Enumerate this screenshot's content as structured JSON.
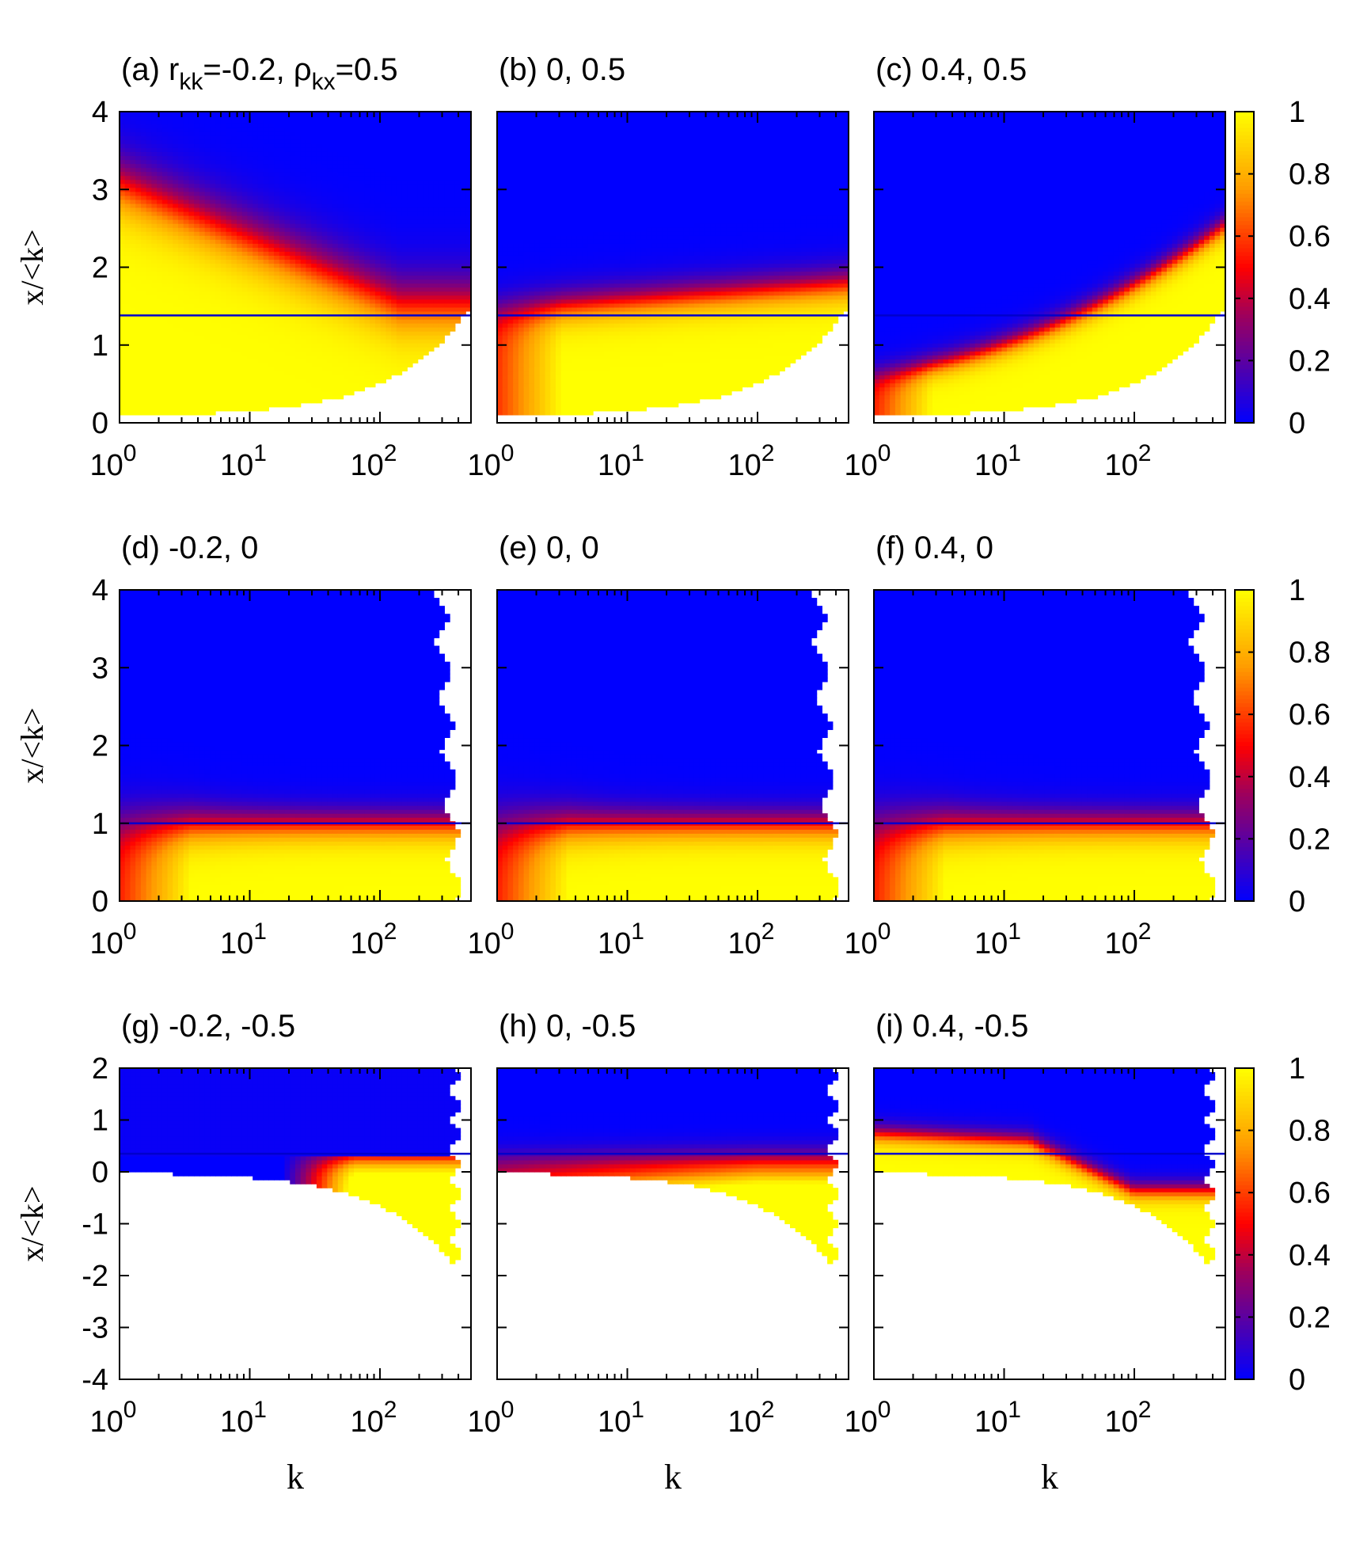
{
  "colormap": {
    "stops": [
      {
        "v": 0.0,
        "color": "#0000ff"
      },
      {
        "v": 0.35,
        "color": "#a0005a"
      },
      {
        "v": 0.5,
        "color": "#ff0000"
      },
      {
        "v": 0.75,
        "color": "#ff9a00"
      },
      {
        "v": 1.0,
        "color": "#ffff00"
      }
    ],
    "tick_labels": [
      "0",
      "0.2",
      "0.4",
      "0.6",
      "0.8",
      "1"
    ]
  },
  "threshold_line_color": "#0000cc",
  "chart_data": [
    {
      "id": "a",
      "type": "heatmap",
      "title_prefix": "(a) ",
      "title_parts": [
        "r",
        "kk",
        "=-0.2, ",
        "ρ",
        "kx",
        "=0.5"
      ],
      "x_scale": "log",
      "xlim": [
        1,
        500
      ],
      "x_ticks": [
        1,
        10,
        100
      ],
      "x_tick_labels": [
        {
          "base": "10",
          "exp": "0"
        },
        {
          "base": "10",
          "exp": "1"
        },
        {
          "base": "10",
          "exp": "2"
        }
      ],
      "ylim": [
        0,
        4
      ],
      "y_ticks": [
        "0",
        "1",
        "2",
        "3",
        "4"
      ],
      "ylabel": "x/<k>",
      "xlabel": "",
      "threshold": 1.38,
      "rkk": -0.2,
      "rho": 0.5
    },
    {
      "id": "b",
      "type": "heatmap",
      "title": "(b) 0, 0.5",
      "x_scale": "log",
      "xlim": [
        1,
        500
      ],
      "x_ticks": [
        1,
        10,
        100
      ],
      "x_tick_labels": [
        {
          "base": "10",
          "exp": "0"
        },
        {
          "base": "10",
          "exp": "1"
        },
        {
          "base": "10",
          "exp": "2"
        }
      ],
      "ylim": [
        0,
        4
      ],
      "y_ticks": [],
      "ylabel": "",
      "xlabel": "",
      "threshold": 1.38,
      "rkk": 0,
      "rho": 0.5
    },
    {
      "id": "c",
      "type": "heatmap",
      "title": "(c) 0.4, 0.5",
      "x_scale": "log",
      "xlim": [
        1,
        500
      ],
      "x_ticks": [
        1,
        10,
        100
      ],
      "x_tick_labels": [
        {
          "base": "10",
          "exp": "0"
        },
        {
          "base": "10",
          "exp": "1"
        },
        {
          "base": "10",
          "exp": "2"
        }
      ],
      "ylim": [
        0,
        4
      ],
      "y_ticks": [],
      "ylabel": "",
      "xlabel": "",
      "threshold": 1.38,
      "rkk": 0.4,
      "rho": 0.5,
      "colorbar": true
    },
    {
      "id": "d",
      "type": "heatmap",
      "title": "(d) -0.2, 0",
      "x_scale": "log",
      "xlim": [
        1,
        500
      ],
      "x_ticks": [
        1,
        10,
        100
      ],
      "x_tick_labels": [
        {
          "base": "10",
          "exp": "0"
        },
        {
          "base": "10",
          "exp": "1"
        },
        {
          "base": "10",
          "exp": "2"
        }
      ],
      "ylim": [
        0,
        4
      ],
      "y_ticks": [
        "0",
        "1",
        "2",
        "3",
        "4"
      ],
      "ylabel": "x/<k>",
      "xlabel": "",
      "threshold": 1.0,
      "rkk": -0.2,
      "rho": 0
    },
    {
      "id": "e",
      "type": "heatmap",
      "title": "(e) 0, 0",
      "x_scale": "log",
      "xlim": [
        1,
        500
      ],
      "x_ticks": [
        1,
        10,
        100
      ],
      "x_tick_labels": [
        {
          "base": "10",
          "exp": "0"
        },
        {
          "base": "10",
          "exp": "1"
        },
        {
          "base": "10",
          "exp": "2"
        }
      ],
      "ylim": [
        0,
        4
      ],
      "y_ticks": [],
      "ylabel": "",
      "xlabel": "",
      "threshold": 1.0,
      "rkk": 0,
      "rho": 0
    },
    {
      "id": "f",
      "type": "heatmap",
      "title": "(f) 0.4, 0",
      "x_scale": "log",
      "xlim": [
        1,
        500
      ],
      "x_ticks": [
        1,
        10,
        100
      ],
      "x_tick_labels": [
        {
          "base": "10",
          "exp": "0"
        },
        {
          "base": "10",
          "exp": "1"
        },
        {
          "base": "10",
          "exp": "2"
        }
      ],
      "ylim": [
        0,
        4
      ],
      "y_ticks": [],
      "ylabel": "",
      "xlabel": "",
      "threshold": 1.0,
      "rkk": 0.4,
      "rho": 0,
      "colorbar": true
    },
    {
      "id": "g",
      "type": "heatmap",
      "title": "(g) -0.2, -0.5",
      "x_scale": "log",
      "xlim": [
        1,
        500
      ],
      "x_ticks": [
        1,
        10,
        100
      ],
      "x_tick_labels": [
        {
          "base": "10",
          "exp": "0"
        },
        {
          "base": "10",
          "exp": "1"
        },
        {
          "base": "10",
          "exp": "2"
        }
      ],
      "ylim": [
        -4,
        2
      ],
      "y_ticks": [
        "-4",
        "-3",
        "-2",
        "-1",
        "0",
        "1",
        "2"
      ],
      "ylabel": "x/<k>",
      "xlabel": "k",
      "threshold": 0.35,
      "rkk": -0.2,
      "rho": -0.5
    },
    {
      "id": "h",
      "type": "heatmap",
      "title": "(h) 0, -0.5",
      "x_scale": "log",
      "xlim": [
        1,
        500
      ],
      "x_ticks": [
        1,
        10,
        100
      ],
      "x_tick_labels": [
        {
          "base": "10",
          "exp": "0"
        },
        {
          "base": "10",
          "exp": "1"
        },
        {
          "base": "10",
          "exp": "2"
        }
      ],
      "ylim": [
        -4,
        2
      ],
      "y_ticks": [],
      "ylabel": "",
      "xlabel": "k",
      "threshold": 0.35,
      "rkk": 0,
      "rho": -0.5
    },
    {
      "id": "i",
      "type": "heatmap",
      "title": "(i) 0.4, -0.5",
      "x_scale": "log",
      "xlim": [
        1,
        500
      ],
      "x_ticks": [
        1,
        10,
        100
      ],
      "x_tick_labels": [
        {
          "base": "10",
          "exp": "0"
        },
        {
          "base": "10",
          "exp": "1"
        },
        {
          "base": "10",
          "exp": "2"
        }
      ],
      "ylim": [
        -4,
        2
      ],
      "y_ticks": [],
      "ylabel": "",
      "xlabel": "k",
      "threshold": 0.35,
      "rkk": 0.4,
      "rho": -0.5,
      "colorbar": true
    }
  ]
}
